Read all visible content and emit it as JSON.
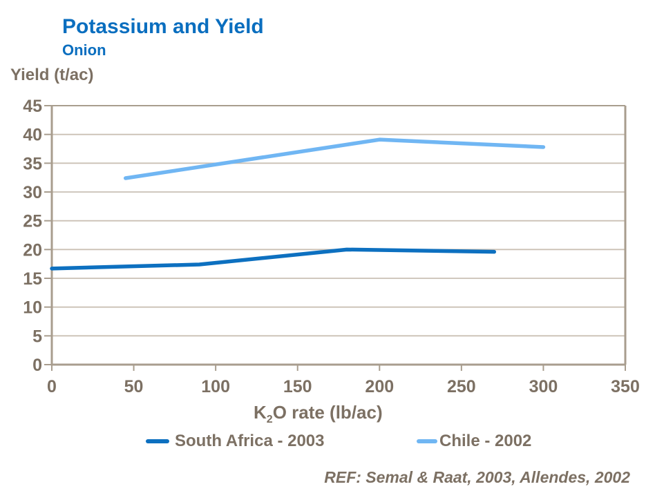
{
  "header": {
    "title": "Potassium and Yield",
    "subtitle": "Onion"
  },
  "footer": {
    "reference": "REF: Semal & Raat, 2003, Allendes, 2002"
  },
  "colors": {
    "accent_blue": "#0a6ebf",
    "axis_text": "#7c7063",
    "gridline": "#cac0b4",
    "axis_line": "#a89d8e",
    "series_dark_blue": "#0d70c0",
    "series_light_blue": "#70b6f3"
  },
  "chart_data": {
    "type": "line",
    "title": "Potassium and Yield",
    "subtitle": "Onion",
    "ylabel": "Yield (t/ac)",
    "xlabel": "K2O rate (lb/ac)",
    "xlabel_parts": {
      "main": "K",
      "sub": "2",
      "rest": "O rate (lb/ac)"
    },
    "xlim": [
      0,
      350
    ],
    "ylim": [
      0,
      45
    ],
    "xticks": [
      0,
      50,
      100,
      150,
      200,
      250,
      300,
      350
    ],
    "yticks": [
      0,
      5,
      10,
      15,
      20,
      25,
      30,
      35,
      40,
      45
    ],
    "grid": true,
    "legend_position": "bottom-center",
    "series": [
      {
        "name": "South Africa - 2003",
        "color": "#0d70c0",
        "x": [
          0,
          90,
          180,
          270
        ],
        "y": [
          16.7,
          17.4,
          20.0,
          19.6
        ]
      },
      {
        "name": "Chile - 2002",
        "color": "#70b6f3",
        "x": [
          45,
          200,
          300
        ],
        "y": [
          32.4,
          39.1,
          37.8
        ]
      }
    ]
  }
}
